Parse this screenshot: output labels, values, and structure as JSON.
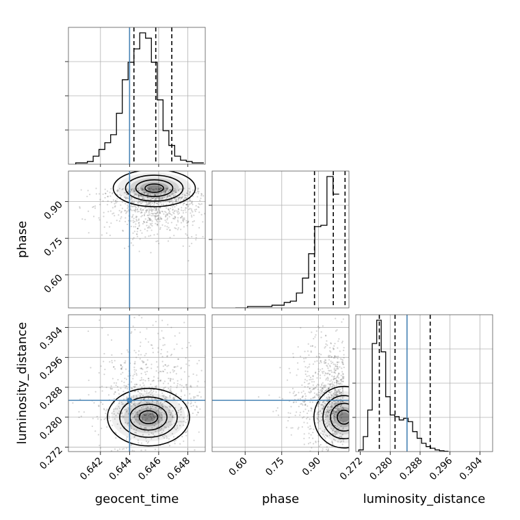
{
  "chart_data": {
    "type": "corner",
    "grid": true,
    "params": [
      "geocent_time",
      "phase",
      "luminosity_distance"
    ],
    "truths": {
      "geocent_time": 0.644,
      "luminosity_distance": 0.2845
    },
    "colors": {
      "truth": "#4682b4",
      "hist": "#000000",
      "density": "#000000"
    },
    "axes": {
      "geocent_time": {
        "label": "geocent_time",
        "range": [
          0.6398,
          0.6492
        ],
        "ticks": [
          "0.642",
          "0.644",
          "0.646",
          "0.648"
        ]
      },
      "phase": {
        "label": "phase",
        "range": [
          0.465,
          1.025
        ],
        "ticks": [
          "0.60",
          "0.75",
          "0.90"
        ]
      },
      "luminosity_distance": {
        "label": "luminosity_distance",
        "range": [
          0.2708,
          0.3074
        ],
        "ticks": [
          "0.272",
          "0.280",
          "0.288",
          "0.296",
          "0.304"
        ]
      }
    },
    "histograms": {
      "geocent_time": {
        "edges_start": 0.6403,
        "bin_width": 0.0004,
        "counts": [
          0.01,
          0.01,
          0.02,
          0.06,
          0.11,
          0.16,
          0.22,
          0.38,
          0.63,
          0.76,
          0.86,
          0.98,
          0.94,
          0.76,
          0.48,
          0.25,
          0.14,
          0.06,
          0.03,
          0.02,
          0.01,
          0.01
        ],
        "quantiles": [
          0.6443,
          0.6458,
          0.6469
        ]
      },
      "phase": {
        "edges_start": 0.56,
        "bin_width": 0.025,
        "counts": [
          0.0,
          0.0,
          0.01,
          0.01,
          0.01,
          0.01,
          0.02,
          0.02,
          0.04,
          0.05,
          0.11,
          0.22,
          0.4,
          0.6,
          0.61,
          0.97,
          0.84
        ],
        "quantiles": [
          0.884,
          0.961,
          1.009
        ]
      },
      "luminosity_distance": {
        "edges_start": 0.2716,
        "bin_width": 0.0012,
        "counts": [
          0.01,
          0.09,
          0.25,
          0.65,
          0.79,
          0.6,
          0.33,
          0.22,
          0.21,
          0.19,
          0.2,
          0.18,
          0.12,
          0.08,
          0.05,
          0.03,
          0.02,
          0.01,
          0.005,
          0.002
        ],
        "quantiles": [
          0.2771,
          0.2813,
          0.2907
        ]
      }
    },
    "density_samples_center": {
      "geocent_time_vs_phase": {
        "x": 0.6457,
        "y": 0.955
      },
      "geocent_time_vs_luminosity_distance": {
        "x": 0.6453,
        "y": 0.28
      },
      "phase_vs_luminosity_distance": {
        "x": 1.005,
        "y": 0.28
      }
    }
  }
}
